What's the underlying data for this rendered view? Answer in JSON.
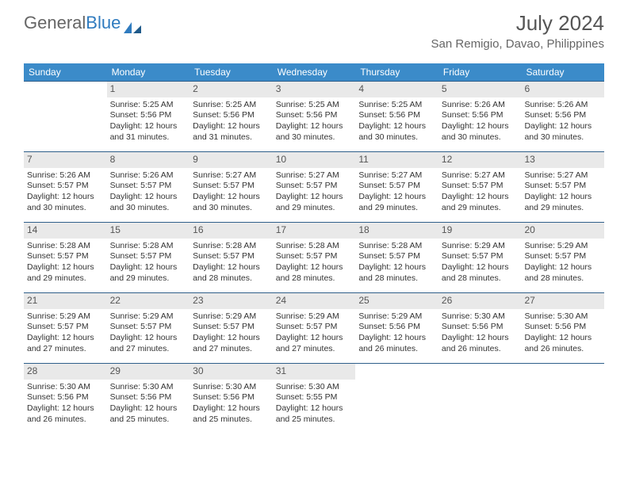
{
  "brand": {
    "part1": "General",
    "part2": "Blue"
  },
  "title": "July 2024",
  "location": "San Remigio, Davao, Philippines",
  "colors": {
    "header_bg": "#3b8bc9",
    "header_text": "#ffffff",
    "daynum_bg": "#e9e9e9",
    "daynum_text": "#555555",
    "week_border": "#2f5f8a",
    "title_text": "#555555",
    "body_text": "#333333",
    "brand_gray": "#666666",
    "brand_blue": "#2f7bbf",
    "page_bg": "#ffffff"
  },
  "weekdays": [
    "Sunday",
    "Monday",
    "Tuesday",
    "Wednesday",
    "Thursday",
    "Friday",
    "Saturday"
  ],
  "weeks": [
    [
      {
        "n": "",
        "empty": true
      },
      {
        "n": "1",
        "sr": "Sunrise: 5:25 AM",
        "ss": "Sunset: 5:56 PM",
        "d1": "Daylight: 12 hours",
        "d2": "and 31 minutes."
      },
      {
        "n": "2",
        "sr": "Sunrise: 5:25 AM",
        "ss": "Sunset: 5:56 PM",
        "d1": "Daylight: 12 hours",
        "d2": "and 31 minutes."
      },
      {
        "n": "3",
        "sr": "Sunrise: 5:25 AM",
        "ss": "Sunset: 5:56 PM",
        "d1": "Daylight: 12 hours",
        "d2": "and 30 minutes."
      },
      {
        "n": "4",
        "sr": "Sunrise: 5:25 AM",
        "ss": "Sunset: 5:56 PM",
        "d1": "Daylight: 12 hours",
        "d2": "and 30 minutes."
      },
      {
        "n": "5",
        "sr": "Sunrise: 5:26 AM",
        "ss": "Sunset: 5:56 PM",
        "d1": "Daylight: 12 hours",
        "d2": "and 30 minutes."
      },
      {
        "n": "6",
        "sr": "Sunrise: 5:26 AM",
        "ss": "Sunset: 5:56 PM",
        "d1": "Daylight: 12 hours",
        "d2": "and 30 minutes."
      }
    ],
    [
      {
        "n": "7",
        "sr": "Sunrise: 5:26 AM",
        "ss": "Sunset: 5:57 PM",
        "d1": "Daylight: 12 hours",
        "d2": "and 30 minutes."
      },
      {
        "n": "8",
        "sr": "Sunrise: 5:26 AM",
        "ss": "Sunset: 5:57 PM",
        "d1": "Daylight: 12 hours",
        "d2": "and 30 minutes."
      },
      {
        "n": "9",
        "sr": "Sunrise: 5:27 AM",
        "ss": "Sunset: 5:57 PM",
        "d1": "Daylight: 12 hours",
        "d2": "and 30 minutes."
      },
      {
        "n": "10",
        "sr": "Sunrise: 5:27 AM",
        "ss": "Sunset: 5:57 PM",
        "d1": "Daylight: 12 hours",
        "d2": "and 29 minutes."
      },
      {
        "n": "11",
        "sr": "Sunrise: 5:27 AM",
        "ss": "Sunset: 5:57 PM",
        "d1": "Daylight: 12 hours",
        "d2": "and 29 minutes."
      },
      {
        "n": "12",
        "sr": "Sunrise: 5:27 AM",
        "ss": "Sunset: 5:57 PM",
        "d1": "Daylight: 12 hours",
        "d2": "and 29 minutes."
      },
      {
        "n": "13",
        "sr": "Sunrise: 5:27 AM",
        "ss": "Sunset: 5:57 PM",
        "d1": "Daylight: 12 hours",
        "d2": "and 29 minutes."
      }
    ],
    [
      {
        "n": "14",
        "sr": "Sunrise: 5:28 AM",
        "ss": "Sunset: 5:57 PM",
        "d1": "Daylight: 12 hours",
        "d2": "and 29 minutes."
      },
      {
        "n": "15",
        "sr": "Sunrise: 5:28 AM",
        "ss": "Sunset: 5:57 PM",
        "d1": "Daylight: 12 hours",
        "d2": "and 29 minutes."
      },
      {
        "n": "16",
        "sr": "Sunrise: 5:28 AM",
        "ss": "Sunset: 5:57 PM",
        "d1": "Daylight: 12 hours",
        "d2": "and 28 minutes."
      },
      {
        "n": "17",
        "sr": "Sunrise: 5:28 AM",
        "ss": "Sunset: 5:57 PM",
        "d1": "Daylight: 12 hours",
        "d2": "and 28 minutes."
      },
      {
        "n": "18",
        "sr": "Sunrise: 5:28 AM",
        "ss": "Sunset: 5:57 PM",
        "d1": "Daylight: 12 hours",
        "d2": "and 28 minutes."
      },
      {
        "n": "19",
        "sr": "Sunrise: 5:29 AM",
        "ss": "Sunset: 5:57 PM",
        "d1": "Daylight: 12 hours",
        "d2": "and 28 minutes."
      },
      {
        "n": "20",
        "sr": "Sunrise: 5:29 AM",
        "ss": "Sunset: 5:57 PM",
        "d1": "Daylight: 12 hours",
        "d2": "and 28 minutes."
      }
    ],
    [
      {
        "n": "21",
        "sr": "Sunrise: 5:29 AM",
        "ss": "Sunset: 5:57 PM",
        "d1": "Daylight: 12 hours",
        "d2": "and 27 minutes."
      },
      {
        "n": "22",
        "sr": "Sunrise: 5:29 AM",
        "ss": "Sunset: 5:57 PM",
        "d1": "Daylight: 12 hours",
        "d2": "and 27 minutes."
      },
      {
        "n": "23",
        "sr": "Sunrise: 5:29 AM",
        "ss": "Sunset: 5:57 PM",
        "d1": "Daylight: 12 hours",
        "d2": "and 27 minutes."
      },
      {
        "n": "24",
        "sr": "Sunrise: 5:29 AM",
        "ss": "Sunset: 5:57 PM",
        "d1": "Daylight: 12 hours",
        "d2": "and 27 minutes."
      },
      {
        "n": "25",
        "sr": "Sunrise: 5:29 AM",
        "ss": "Sunset: 5:56 PM",
        "d1": "Daylight: 12 hours",
        "d2": "and 26 minutes."
      },
      {
        "n": "26",
        "sr": "Sunrise: 5:30 AM",
        "ss": "Sunset: 5:56 PM",
        "d1": "Daylight: 12 hours",
        "d2": "and 26 minutes."
      },
      {
        "n": "27",
        "sr": "Sunrise: 5:30 AM",
        "ss": "Sunset: 5:56 PM",
        "d1": "Daylight: 12 hours",
        "d2": "and 26 minutes."
      }
    ],
    [
      {
        "n": "28",
        "sr": "Sunrise: 5:30 AM",
        "ss": "Sunset: 5:56 PM",
        "d1": "Daylight: 12 hours",
        "d2": "and 26 minutes."
      },
      {
        "n": "29",
        "sr": "Sunrise: 5:30 AM",
        "ss": "Sunset: 5:56 PM",
        "d1": "Daylight: 12 hours",
        "d2": "and 25 minutes."
      },
      {
        "n": "30",
        "sr": "Sunrise: 5:30 AM",
        "ss": "Sunset: 5:56 PM",
        "d1": "Daylight: 12 hours",
        "d2": "and 25 minutes."
      },
      {
        "n": "31",
        "sr": "Sunrise: 5:30 AM",
        "ss": "Sunset: 5:55 PM",
        "d1": "Daylight: 12 hours",
        "d2": "and 25 minutes."
      },
      {
        "n": "",
        "empty": true
      },
      {
        "n": "",
        "empty": true
      },
      {
        "n": "",
        "empty": true
      }
    ]
  ]
}
